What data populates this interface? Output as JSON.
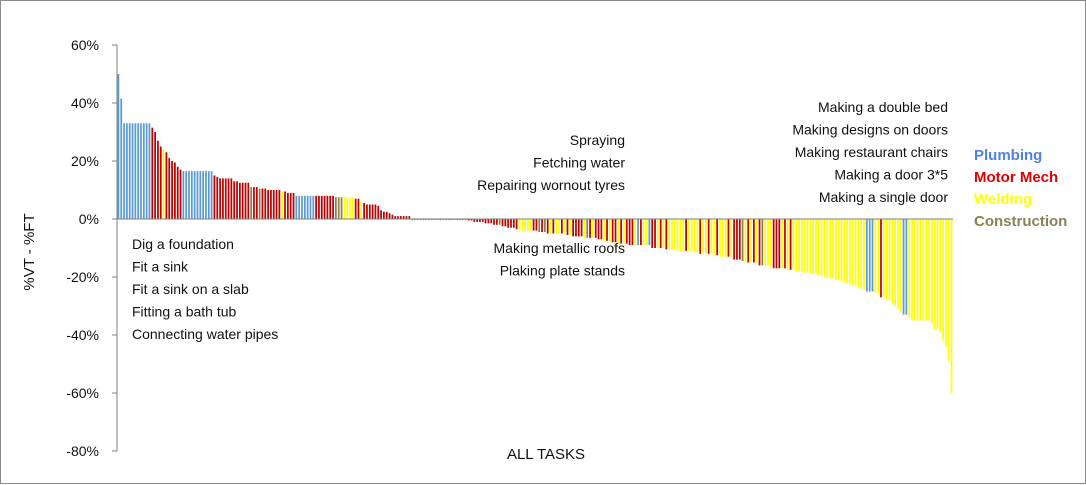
{
  "chart_data": {
    "type": "bar",
    "title": "",
    "xlabel": "ALL TASKS",
    "ylabel": "%VT - %FT",
    "ylim": [
      -80,
      60
    ],
    "yticks": [
      60,
      40,
      20,
      0,
      -20,
      -40,
      -60,
      -80
    ],
    "ytick_labels": [
      "60%",
      "40%",
      "20%",
      "0%",
      "-20%",
      "-40%",
      "-60%",
      "-80%"
    ],
    "grid": false,
    "legend_position": "right",
    "series": [
      {
        "name": "Plumbing",
        "color": "#5b9bd5"
      },
      {
        "name": "Motor Mech",
        "color": "#c00000"
      },
      {
        "name": "Welding",
        "color": "#ffff00"
      },
      {
        "name": "Construction",
        "color": "#8c8054"
      }
    ],
    "bars": [
      {
        "v": 50,
        "s": 0
      },
      {
        "v": 41.5,
        "s": 0
      },
      {
        "v": 33,
        "s": 0
      },
      {
        "v": 33,
        "s": 0
      },
      {
        "v": 33,
        "s": 0
      },
      {
        "v": 33,
        "s": 0
      },
      {
        "v": 33,
        "s": 0
      },
      {
        "v": 33,
        "s": 0
      },
      {
        "v": 33,
        "s": 0
      },
      {
        "v": 33,
        "s": 0
      },
      {
        "v": 33,
        "s": 0
      },
      {
        "v": 33,
        "s": 0
      },
      {
        "v": 31.5,
        "s": 1
      },
      {
        "v": 30,
        "s": 1
      },
      {
        "v": 27,
        "s": 1
      },
      {
        "v": 25,
        "s": 1
      },
      {
        "v": 24,
        "s": 2
      },
      {
        "v": 23,
        "s": 1
      },
      {
        "v": 21,
        "s": 1
      },
      {
        "v": 20,
        "s": 1
      },
      {
        "v": 19.5,
        "s": 1
      },
      {
        "v": 18,
        "s": 1
      },
      {
        "v": 17,
        "s": 1
      },
      {
        "v": 16.5,
        "s": 0
      },
      {
        "v": 16.5,
        "s": 0
      },
      {
        "v": 16.5,
        "s": 0
      },
      {
        "v": 16.5,
        "s": 0
      },
      {
        "v": 16.5,
        "s": 0
      },
      {
        "v": 16.5,
        "s": 0
      },
      {
        "v": 16.5,
        "s": 0
      },
      {
        "v": 16.5,
        "s": 0
      },
      {
        "v": 16.5,
        "s": 0
      },
      {
        "v": 16.5,
        "s": 0
      },
      {
        "v": 16.5,
        "s": 0
      },
      {
        "v": 15,
        "s": 1
      },
      {
        "v": 14.5,
        "s": 1
      },
      {
        "v": 14,
        "s": 1
      },
      {
        "v": 14,
        "s": 1
      },
      {
        "v": 14,
        "s": 1
      },
      {
        "v": 14,
        "s": 1
      },
      {
        "v": 14,
        "s": 1
      },
      {
        "v": 13,
        "s": 1
      },
      {
        "v": 13,
        "s": 1
      },
      {
        "v": 12.5,
        "s": 1
      },
      {
        "v": 12.5,
        "s": 1
      },
      {
        "v": 12.5,
        "s": 1
      },
      {
        "v": 12.5,
        "s": 1
      },
      {
        "v": 11,
        "s": 3
      },
      {
        "v": 11,
        "s": 1
      },
      {
        "v": 11,
        "s": 1
      },
      {
        "v": 10.5,
        "s": 3
      },
      {
        "v": 10.5,
        "s": 1
      },
      {
        "v": 10.5,
        "s": 1
      },
      {
        "v": 10,
        "s": 1
      },
      {
        "v": 10,
        "s": 1
      },
      {
        "v": 10,
        "s": 1
      },
      {
        "v": 10,
        "s": 1
      },
      {
        "v": 10,
        "s": 1
      },
      {
        "v": 9.5,
        "s": 2
      },
      {
        "v": 9.5,
        "s": 1
      },
      {
        "v": 9,
        "s": 1
      },
      {
        "v": 9,
        "s": 1
      },
      {
        "v": 9,
        "s": 1
      },
      {
        "v": 8,
        "s": 0
      },
      {
        "v": 8,
        "s": 0
      },
      {
        "v": 8,
        "s": 0
      },
      {
        "v": 8,
        "s": 0
      },
      {
        "v": 8,
        "s": 0
      },
      {
        "v": 8,
        "s": 0
      },
      {
        "v": 8,
        "s": 0
      },
      {
        "v": 8,
        "s": 1
      },
      {
        "v": 8,
        "s": 1
      },
      {
        "v": 8,
        "s": 1
      },
      {
        "v": 8,
        "s": 1
      },
      {
        "v": 8,
        "s": 1
      },
      {
        "v": 8,
        "s": 1
      },
      {
        "v": 8,
        "s": 1
      },
      {
        "v": 7.5,
        "s": 3
      },
      {
        "v": 7.5,
        "s": 3
      },
      {
        "v": 7.5,
        "s": 3
      },
      {
        "v": 7.5,
        "s": 2
      },
      {
        "v": 7.5,
        "s": 2
      },
      {
        "v": 7.5,
        "s": 2
      },
      {
        "v": 7.5,
        "s": 2
      },
      {
        "v": 7,
        "s": 1
      },
      {
        "v": 7,
        "s": 1
      },
      {
        "v": 6,
        "s": 2
      },
      {
        "v": 5.5,
        "s": 1
      },
      {
        "v": 5,
        "s": 1
      },
      {
        "v": 5,
        "s": 1
      },
      {
        "v": 5,
        "s": 1
      },
      {
        "v": 5,
        "s": 1
      },
      {
        "v": 4.5,
        "s": 1
      },
      {
        "v": 3,
        "s": 1
      },
      {
        "v": 2.5,
        "s": 1
      },
      {
        "v": 2.5,
        "s": 1
      },
      {
        "v": 2,
        "s": 1
      },
      {
        "v": 1.5,
        "s": 1
      },
      {
        "v": 1,
        "s": 1
      },
      {
        "v": 1,
        "s": 1
      },
      {
        "v": 1,
        "s": 1
      },
      {
        "v": 1,
        "s": 1
      },
      {
        "v": 1,
        "s": 1
      },
      {
        "v": 1,
        "s": 1
      },
      {
        "v": 0,
        "s": 1
      },
      {
        "v": 0,
        "s": 1
      },
      {
        "v": 0,
        "s": 1
      },
      {
        "v": 0,
        "s": 1
      },
      {
        "v": 0,
        "s": 1
      },
      {
        "v": 0,
        "s": 1
      },
      {
        "v": 0,
        "s": 1
      },
      {
        "v": 0,
        "s": 1
      },
      {
        "v": 0,
        "s": 1
      },
      {
        "v": 0,
        "s": 1
      },
      {
        "v": 0,
        "s": 1
      },
      {
        "v": 0,
        "s": 1
      },
      {
        "v": 0,
        "s": 1
      },
      {
        "v": 0,
        "s": 1
      },
      {
        "v": 0,
        "s": 1
      },
      {
        "v": 0,
        "s": 1
      },
      {
        "v": 0,
        "s": 1
      },
      {
        "v": 0,
        "s": 1
      },
      {
        "v": 0,
        "s": 1
      },
      {
        "v": 0,
        "s": 1
      },
      {
        "v": -0.5,
        "s": 1
      },
      {
        "v": -0.5,
        "s": 1
      },
      {
        "v": -1,
        "s": 1
      },
      {
        "v": -1,
        "s": 1
      },
      {
        "v": -1,
        "s": 1
      },
      {
        "v": -1,
        "s": 1
      },
      {
        "v": -1.5,
        "s": 1
      },
      {
        "v": -1.5,
        "s": 1
      },
      {
        "v": -1.5,
        "s": 1
      },
      {
        "v": -2,
        "s": 1
      },
      {
        "v": -2,
        "s": 1
      },
      {
        "v": -2,
        "s": 3
      },
      {
        "v": -2.5,
        "s": 1
      },
      {
        "v": -2.5,
        "s": 1
      },
      {
        "v": -3,
        "s": 1
      },
      {
        "v": -3,
        "s": 1
      },
      {
        "v": -3,
        "s": 1
      },
      {
        "v": -3.5,
        "s": 1
      },
      {
        "v": -4,
        "s": 2
      },
      {
        "v": -4,
        "s": 2
      },
      {
        "v": -4,
        "s": 2
      },
      {
        "v": -4,
        "s": 2
      },
      {
        "v": -4,
        "s": 2
      },
      {
        "v": -4,
        "s": 1
      },
      {
        "v": -4,
        "s": 1
      },
      {
        "v": -4.5,
        "s": 3
      },
      {
        "v": -4.5,
        "s": 1
      },
      {
        "v": -4.5,
        "s": 3
      },
      {
        "v": -5,
        "s": 1
      },
      {
        "v": -5,
        "s": 2
      },
      {
        "v": -5,
        "s": 1
      },
      {
        "v": -5,
        "s": 2
      },
      {
        "v": -5,
        "s": 2
      },
      {
        "v": -5,
        "s": 1
      },
      {
        "v": -5,
        "s": 2
      },
      {
        "v": -5.5,
        "s": 1
      },
      {
        "v": -5.5,
        "s": 2
      },
      {
        "v": -6,
        "s": 1
      },
      {
        "v": -6,
        "s": 1
      },
      {
        "v": -6,
        "s": 1
      },
      {
        "v": -6,
        "s": 1
      },
      {
        "v": -6.5,
        "s": 2
      },
      {
        "v": -6.5,
        "s": 3
      },
      {
        "v": -6.5,
        "s": 1
      },
      {
        "v": -6.5,
        "s": 2
      },
      {
        "v": -6.5,
        "s": 1
      },
      {
        "v": -7,
        "s": 1
      },
      {
        "v": -7,
        "s": 1
      },
      {
        "v": -7.5,
        "s": 2
      },
      {
        "v": -7.5,
        "s": 1
      },
      {
        "v": -8,
        "s": 2
      },
      {
        "v": -8,
        "s": 1
      },
      {
        "v": -8,
        "s": 1
      },
      {
        "v": -8.5,
        "s": 2
      },
      {
        "v": -8.5,
        "s": 1
      },
      {
        "v": -8.5,
        "s": 2
      },
      {
        "v": -8.5,
        "s": 1
      },
      {
        "v": -9,
        "s": 1
      },
      {
        "v": -9,
        "s": 1
      },
      {
        "v": -9,
        "s": 2
      },
      {
        "v": -9,
        "s": 0
      },
      {
        "v": -9,
        "s": 1
      },
      {
        "v": -9,
        "s": 2
      },
      {
        "v": -9,
        "s": 2
      },
      {
        "v": -9,
        "s": 0
      },
      {
        "v": -10,
        "s": 1
      },
      {
        "v": -10,
        "s": 1
      },
      {
        "v": -10,
        "s": 2
      },
      {
        "v": -10,
        "s": 1
      },
      {
        "v": -10,
        "s": 2
      },
      {
        "v": -10.5,
        "s": 1
      },
      {
        "v": -10.5,
        "s": 2
      },
      {
        "v": -10.5,
        "s": 2
      },
      {
        "v": -10.5,
        "s": 2
      },
      {
        "v": -11,
        "s": 2
      },
      {
        "v": -11,
        "s": 2
      },
      {
        "v": -11,
        "s": 2
      },
      {
        "v": -11,
        "s": 1
      },
      {
        "v": -11,
        "s": 2
      },
      {
        "v": -11,
        "s": 2
      },
      {
        "v": -11.5,
        "s": 2
      },
      {
        "v": -11.5,
        "s": 2
      },
      {
        "v": -12,
        "s": 1
      },
      {
        "v": -12,
        "s": 2
      },
      {
        "v": -12,
        "s": 2
      },
      {
        "v": -12,
        "s": 1
      },
      {
        "v": -12,
        "s": 2
      },
      {
        "v": -12.5,
        "s": 2
      },
      {
        "v": -12.5,
        "s": 1
      },
      {
        "v": -13,
        "s": 2
      },
      {
        "v": -13,
        "s": 2
      },
      {
        "v": -13,
        "s": 2
      },
      {
        "v": -13,
        "s": 1
      },
      {
        "v": -13.5,
        "s": 2
      },
      {
        "v": -14,
        "s": 1
      },
      {
        "v": -14,
        "s": 1
      },
      {
        "v": -14,
        "s": 1
      },
      {
        "v": -14.5,
        "s": 3
      },
      {
        "v": -15,
        "s": 2
      },
      {
        "v": -15,
        "s": 1
      },
      {
        "v": -15,
        "s": 2
      },
      {
        "v": -15,
        "s": 1
      },
      {
        "v": -15,
        "s": 2
      },
      {
        "v": -16,
        "s": 1
      },
      {
        "v": -16,
        "s": 3
      },
      {
        "v": -16,
        "s": 2
      },
      {
        "v": -16,
        "s": 2
      },
      {
        "v": -16.5,
        "s": 2
      },
      {
        "v": -17,
        "s": 1
      },
      {
        "v": -17,
        "s": 1
      },
      {
        "v": -17,
        "s": 1
      },
      {
        "v": -17,
        "s": 2
      },
      {
        "v": -17,
        "s": 1
      },
      {
        "v": -17.5,
        "s": 2
      },
      {
        "v": -17.5,
        "s": 1
      },
      {
        "v": -17.5,
        "s": 2
      },
      {
        "v": -18,
        "s": 2
      },
      {
        "v": -18,
        "s": 2
      },
      {
        "v": -18,
        "s": 2
      },
      {
        "v": -18.5,
        "s": 2
      },
      {
        "v": -18.5,
        "s": 2
      },
      {
        "v": -19,
        "s": 2
      },
      {
        "v": -19,
        "s": 2
      },
      {
        "v": -19,
        "s": 2
      },
      {
        "v": -19.5,
        "s": 2
      },
      {
        "v": -19.5,
        "s": 2
      },
      {
        "v": -20,
        "s": 2
      },
      {
        "v": -20,
        "s": 2
      },
      {
        "v": -20.5,
        "s": 2
      },
      {
        "v": -20.5,
        "s": 2
      },
      {
        "v": -21,
        "s": 2
      },
      {
        "v": -21,
        "s": 2
      },
      {
        "v": -21.5,
        "s": 2
      },
      {
        "v": -22,
        "s": 2
      },
      {
        "v": -22,
        "s": 2
      },
      {
        "v": -22.5,
        "s": 2
      },
      {
        "v": -23,
        "s": 2
      },
      {
        "v": -23,
        "s": 2
      },
      {
        "v": -23.5,
        "s": 2
      },
      {
        "v": -24,
        "s": 2
      },
      {
        "v": -24.5,
        "s": 2
      },
      {
        "v": -25,
        "s": 0
      },
      {
        "v": -25,
        "s": 0
      },
      {
        "v": -25,
        "s": 0
      },
      {
        "v": -25.5,
        "s": 2
      },
      {
        "v": -26,
        "s": 2
      },
      {
        "v": -27,
        "s": 1
      },
      {
        "v": -27,
        "s": 2
      },
      {
        "v": -28,
        "s": 2
      },
      {
        "v": -28,
        "s": 2
      },
      {
        "v": -29,
        "s": 2
      },
      {
        "v": -30,
        "s": 2
      },
      {
        "v": -31,
        "s": 2
      },
      {
        "v": -32,
        "s": 2
      },
      {
        "v": -33,
        "s": 0
      },
      {
        "v": -33,
        "s": 0
      },
      {
        "v": -34,
        "s": 2
      },
      {
        "v": -35,
        "s": 2
      },
      {
        "v": -35,
        "s": 2
      },
      {
        "v": -35,
        "s": 2
      },
      {
        "v": -35,
        "s": 2
      },
      {
        "v": -35,
        "s": 2
      },
      {
        "v": -35,
        "s": 2
      },
      {
        "v": -35,
        "s": 2
      },
      {
        "v": -36,
        "s": 2
      },
      {
        "v": -38,
        "s": 2
      },
      {
        "v": -38,
        "s": 2
      },
      {
        "v": -39,
        "s": 2
      },
      {
        "v": -42,
        "s": 2
      },
      {
        "v": -44,
        "s": 2
      },
      {
        "v": -49,
        "s": 2
      },
      {
        "v": -60,
        "s": 2
      }
    ]
  },
  "annotations": {
    "left_group": [
      "Dig a foundation",
      "Fit a sink",
      "Fit a sink on a slab",
      "Fitting a bath tub",
      "Connecting water pipes"
    ],
    "center_top": [
      "Spraying",
      "Fetching water",
      "Repairing wornout tyres"
    ],
    "center_bottom": [
      "Making metallic roofs",
      "Plaking plate stands"
    ],
    "right_group": [
      "Making a double bed",
      "Making designs on doors",
      "Making restaurant chairs",
      "Making a door 3*5",
      "Making a single door"
    ]
  },
  "legend": {
    "items": [
      {
        "label": "Plumbing",
        "color": "#4f81e8"
      },
      {
        "label": "Motor Mech",
        "color": "#e00000"
      },
      {
        "label": "Welding",
        "color": "#ffff00"
      },
      {
        "label": "Construction",
        "color": "#8c8054"
      }
    ]
  }
}
